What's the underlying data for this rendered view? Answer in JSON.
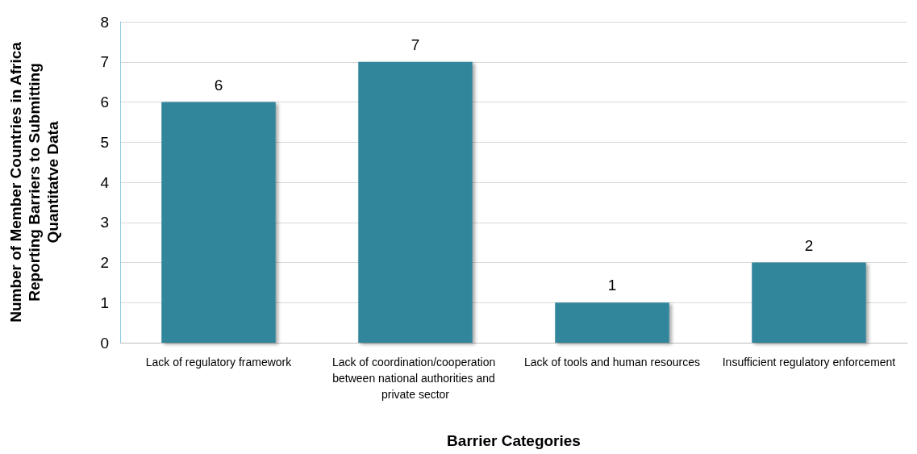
{
  "chart_data": {
    "type": "bar",
    "xlabel": "Barrier Categories",
    "ylabel": "Number of Member Countries in Africa Reporting Barriers to Submitting Quantitatve Data",
    "categories": [
      "Lack of regulatory framework",
      "Lack of coordination/cooperation between national authorities and private sector",
      "Lack of tools and human resources",
      "Insufficient regulatory enforcement"
    ],
    "values": [
      6,
      7,
      1,
      2
    ],
    "color": "#31869b",
    "ylim": [
      0,
      8
    ],
    "yticks": [
      0,
      1,
      2,
      3,
      4,
      5,
      6,
      7,
      8
    ],
    "grid": "y",
    "data_labels": true
  }
}
